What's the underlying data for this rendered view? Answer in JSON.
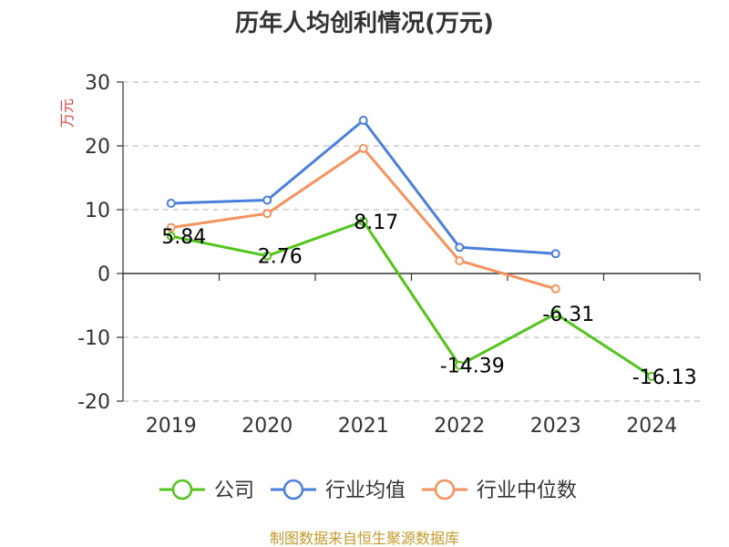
{
  "chart_data": {
    "type": "line",
    "title": "历年人均创利情况(万元)",
    "ylabel": "万元",
    "xlabel": "",
    "categories": [
      "2019",
      "2020",
      "2021",
      "2022",
      "2023",
      "2024"
    ],
    "ylim": [
      -20,
      30
    ],
    "yticks": [
      30,
      20,
      10,
      0,
      -10,
      -20
    ],
    "grid": true,
    "legend_position": "bottom",
    "series": [
      {
        "name": "公司",
        "color": "#52c41a",
        "values": [
          5.84,
          2.76,
          8.17,
          -14.39,
          -6.31,
          -16.13
        ],
        "data_labels": [
          "5.84",
          "2.76",
          "8.17",
          "-14.39",
          "-6.31",
          "-16.13"
        ]
      },
      {
        "name": "行业均值",
        "color": "#4a7fdc",
        "values": [
          11.0,
          11.5,
          24.0,
          4.1,
          3.1,
          null
        ]
      },
      {
        "name": "行业中位数",
        "color": "#f4935e",
        "values": [
          7.2,
          9.4,
          19.6,
          2.0,
          -2.4,
          null
        ]
      }
    ],
    "source": "制图数据来自恒生聚源数据库"
  },
  "colors": {
    "title": "#333333",
    "unit": "#e8413b",
    "source": "#c49a2b",
    "grid": "#cccccc",
    "axis": "#333333"
  }
}
